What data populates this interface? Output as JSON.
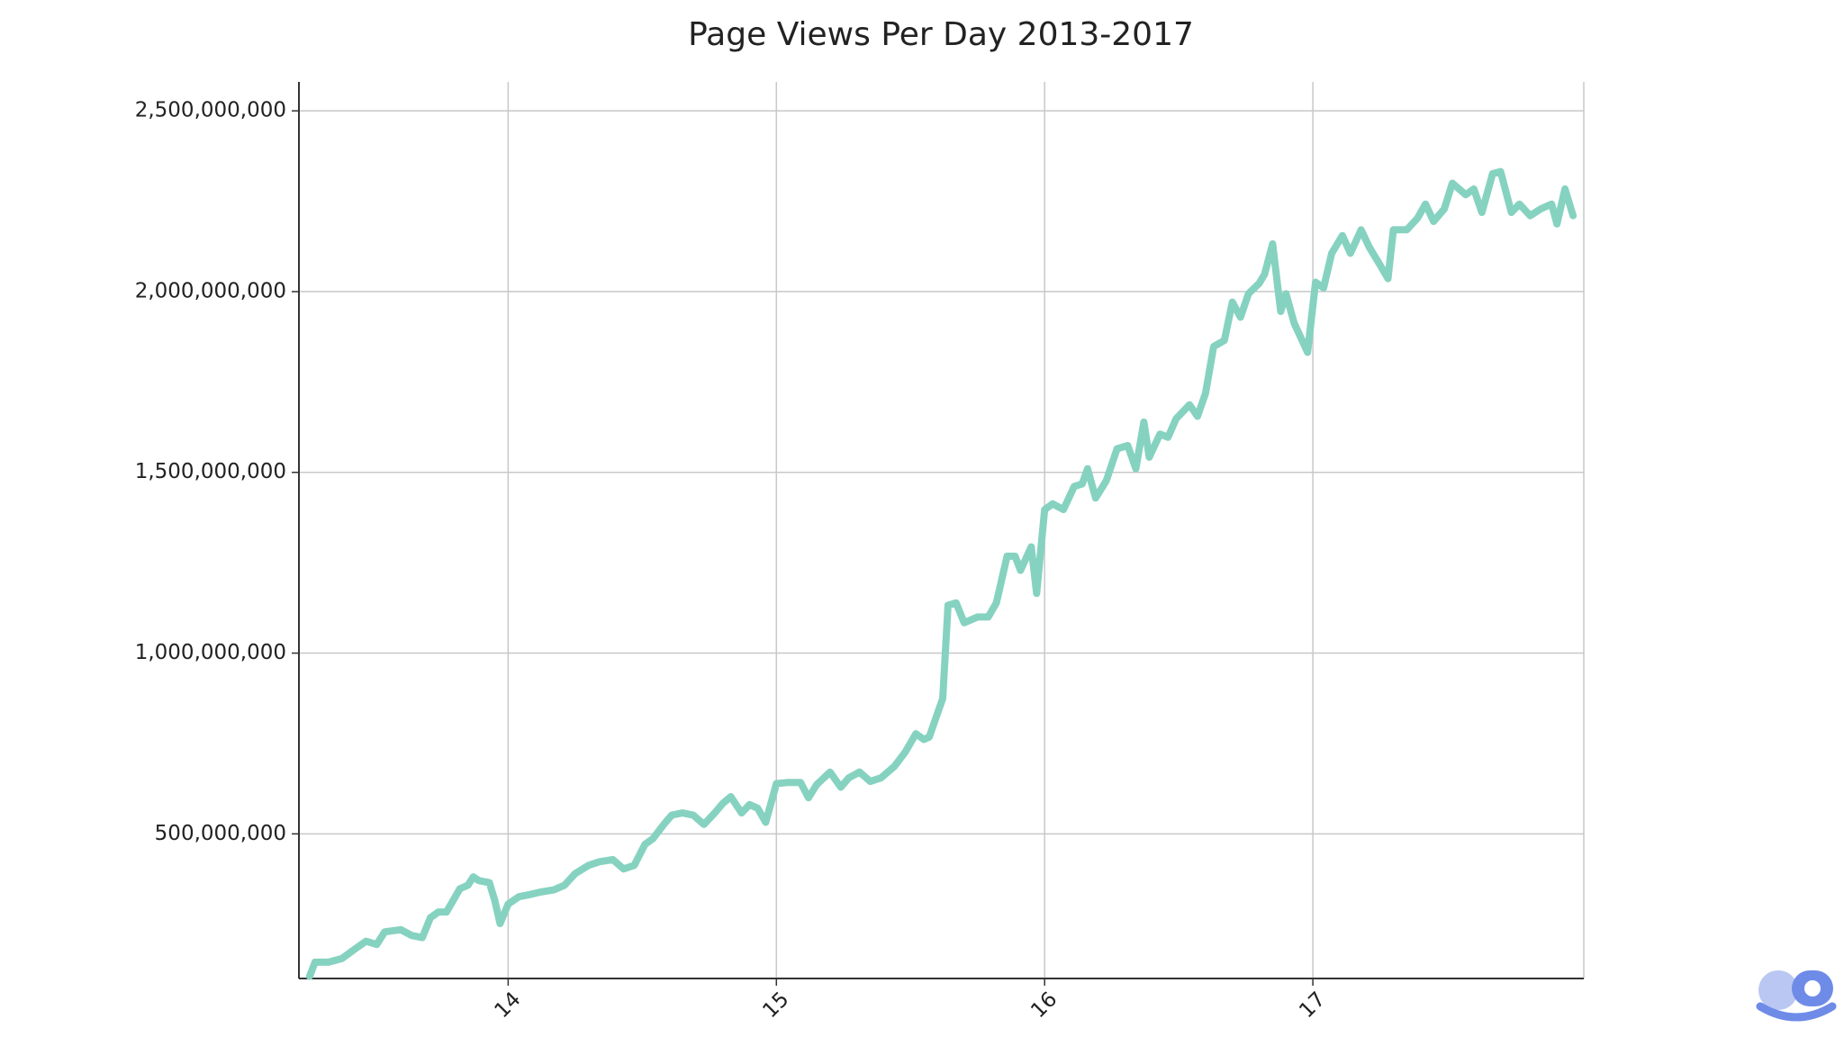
{
  "chart_data": {
    "type": "line",
    "title": "Page Views Per Day 2013-2017",
    "x": [
      13.26,
      13.28,
      13.33,
      13.38,
      13.42,
      13.47,
      13.51,
      13.54,
      13.6,
      13.64,
      13.68,
      13.71,
      13.74,
      13.77,
      13.82,
      13.85,
      13.87,
      13.89,
      13.93,
      13.95,
      13.97,
      14.0,
      14.04,
      14.08,
      14.12,
      14.17,
      14.21,
      14.25,
      14.3,
      14.34,
      14.39,
      14.43,
      14.47,
      14.51,
      14.54,
      14.58,
      14.61,
      14.65,
      14.69,
      14.73,
      14.77,
      14.8,
      14.83,
      14.87,
      14.9,
      14.93,
      14.96,
      15.0,
      15.04,
      15.09,
      15.12,
      15.15,
      15.2,
      15.24,
      15.27,
      15.31,
      15.35,
      15.39,
      15.44,
      15.48,
      15.52,
      15.55,
      15.57,
      15.6,
      15.62,
      15.64,
      15.67,
      15.7,
      15.75,
      15.79,
      15.82,
      15.86,
      15.89,
      15.91,
      15.95,
      15.97,
      16.0,
      16.03,
      16.07,
      16.11,
      16.14,
      16.16,
      16.19,
      16.23,
      16.27,
      16.31,
      16.34,
      16.37,
      16.39,
      16.43,
      16.46,
      16.49,
      16.54,
      16.57,
      16.6,
      16.63,
      16.67,
      16.7,
      16.73,
      16.76,
      16.8,
      16.82,
      16.85,
      16.88,
      16.9,
      16.93,
      16.96,
      16.98,
      17.01,
      17.04,
      17.07,
      17.11,
      17.14,
      17.18,
      17.21,
      17.25,
      17.28,
      17.3,
      17.35,
      17.39,
      17.42,
      17.45,
      17.49,
      17.52,
      17.57,
      17.6,
      17.63,
      17.67,
      17.7,
      17.74,
      17.77,
      17.81,
      17.85,
      17.89,
      17.91,
      17.94,
      17.97
    ],
    "values": [
      106000000,
      145000000,
      145000000,
      155000000,
      177000000,
      203000000,
      194000000,
      229000000,
      235000000,
      219000000,
      213000000,
      268000000,
      284000000,
      284000000,
      348000000,
      358000000,
      381000000,
      371000000,
      365000000,
      316000000,
      252000000,
      306000000,
      326000000,
      332000000,
      339000000,
      345000000,
      358000000,
      390000000,
      413000000,
      423000000,
      429000000,
      403000000,
      413000000,
      471000000,
      487000000,
      526000000,
      552000000,
      558000000,
      552000000,
      526000000,
      558000000,
      584000000,
      603000000,
      558000000,
      581000000,
      571000000,
      532000000,
      639000000,
      642000000,
      642000000,
      600000000,
      636000000,
      671000000,
      629000000,
      655000000,
      671000000,
      645000000,
      655000000,
      687000000,
      726000000,
      777000000,
      761000000,
      768000000,
      832000000,
      874000000,
      1132000000,
      1139000000,
      1084000000,
      1100000000,
      1100000000,
      1139000000,
      1268000000,
      1268000000,
      1229000000,
      1294000000,
      1165000000,
      1397000000,
      1413000000,
      1397000000,
      1461000000,
      1468000000,
      1510000000,
      1429000000,
      1477000000,
      1565000000,
      1574000000,
      1510000000,
      1639000000,
      1542000000,
      1606000000,
      1597000000,
      1648000000,
      1687000000,
      1655000000,
      1719000000,
      1848000000,
      1865000000,
      1971000000,
      1929000000,
      1994000000,
      2023000000,
      2048000000,
      2132000000,
      1945000000,
      1994000000,
      1913000000,
      1865000000,
      1832000000,
      2026000000,
      2010000000,
      2106000000,
      2155000000,
      2106000000,
      2171000000,
      2123000000,
      2074000000,
      2036000000,
      2171000000,
      2171000000,
      2203000000,
      2242000000,
      2194000000,
      2229000000,
      2300000000,
      2268000000,
      2284000000,
      2219000000,
      2326000000,
      2332000000,
      2219000000,
      2242000000,
      2210000000,
      2229000000,
      2242000000,
      2187000000,
      2284000000,
      2210000000
    ],
    "color": "#86d2c0",
    "xlim": [
      13.22,
      18.01
    ],
    "xticks": [
      14,
      15,
      16,
      17
    ],
    "ylim": [
      100000000,
      2580000000
    ],
    "yticks": [
      {
        "value": 500000000,
        "label": "500,000,000"
      },
      {
        "value": 1000000000,
        "label": "1,000,000,000"
      },
      {
        "value": 1500000000,
        "label": "1,500,000,000"
      },
      {
        "value": 2000000000,
        "label": "2,000,000,000"
      },
      {
        "value": 2500000000,
        "label": "2,500,000,000"
      }
    ],
    "grid": true
  }
}
